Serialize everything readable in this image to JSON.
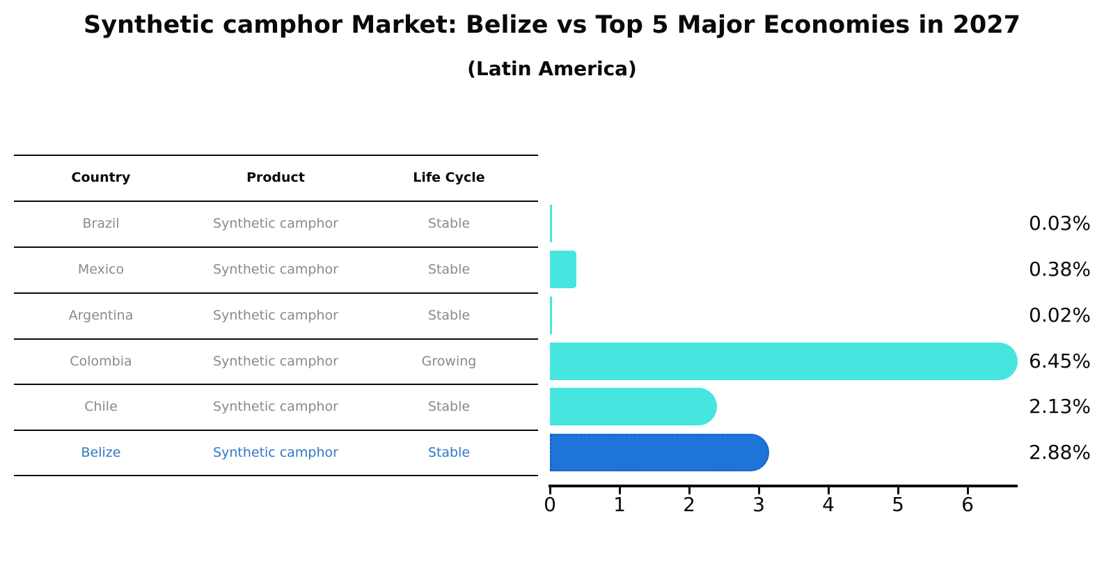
{
  "title": "Synthetic camphor Market: Belize vs Top 5 Major Economies in 2027",
  "subtitle": "(Latin America)",
  "table": {
    "headers": [
      "Country",
      "Product",
      "Life Cycle"
    ],
    "rows": [
      {
        "country": "Brazil",
        "product": "Synthetic camphor",
        "life_cycle": "Stable",
        "highlighted": false
      },
      {
        "country": "Mexico",
        "product": "Synthetic camphor",
        "life_cycle": "Stable",
        "highlighted": false
      },
      {
        "country": "Argentina",
        "product": "Synthetic camphor",
        "life_cycle": "Stable",
        "highlighted": false
      },
      {
        "country": "Colombia",
        "product": "Synthetic camphor",
        "life_cycle": "Growing",
        "highlighted": false
      },
      {
        "country": "Chile",
        "product": "Synthetic camphor",
        "life_cycle": "Stable",
        "highlighted": false
      },
      {
        "country": "Belize",
        "product": "Synthetic camphor",
        "life_cycle": "Stable",
        "highlighted": true
      }
    ]
  },
  "chart_data": {
    "type": "bar",
    "orientation": "horizontal",
    "title": "Synthetic camphor Market: Belize vs Top 5 Major Economies in 2027",
    "subtitle": "(Latin America)",
    "categories": [
      "Brazil",
      "Mexico",
      "Argentina",
      "Colombia",
      "Chile",
      "Belize"
    ],
    "values": [
      0.03,
      0.38,
      0.02,
      6.45,
      2.13,
      2.88
    ],
    "value_labels": [
      "0.03%",
      "0.38%",
      "0.02%",
      "6.45%",
      "2.13%",
      "2.88%"
    ],
    "unit": "%",
    "highlight_category": "Belize",
    "highlight_index": 5,
    "x_ticks": [
      "0",
      "1",
      "2",
      "3",
      "4",
      "5",
      "6"
    ],
    "xlim": [
      0,
      6.75
    ],
    "grid": false,
    "legend": false
  },
  "colors": {
    "bar": "#46e5e0",
    "highlight_bar": "#1e74d9",
    "highlight_border": "#1b66cb",
    "row_text": "#8a8a8a",
    "highlight_text": "#2e79c4",
    "axis": "#0a0a0a"
  }
}
